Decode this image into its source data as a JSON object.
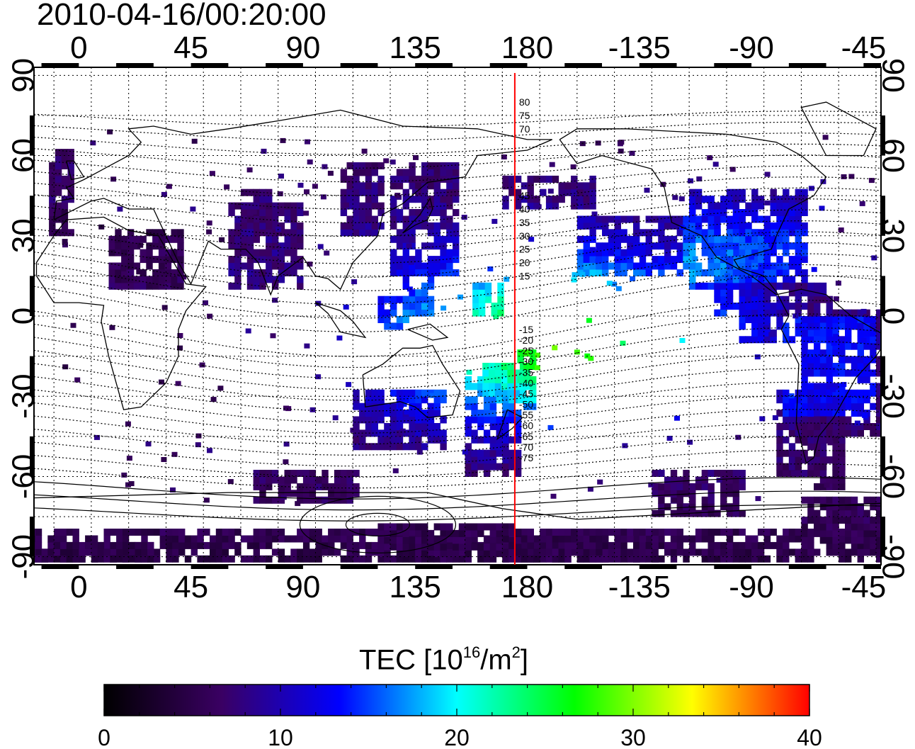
{
  "timestamp": "2010-04-16/00:20:00",
  "chart_data": {
    "type": "heatmap",
    "title": "2010-04-16/00:20:00",
    "x_ticks": [
      "0",
      "45",
      "90",
      "135",
      "180",
      "-135",
      "-90",
      "-45"
    ],
    "x_tick_lon": [
      0,
      45,
      90,
      135,
      180,
      225,
      270,
      315
    ],
    "y_ticks": [
      "90",
      "60",
      "30",
      "0",
      "-30",
      "-60",
      "-90"
    ],
    "y_tick_lat": [
      90,
      60,
      30,
      0,
      -30,
      -60,
      -90
    ],
    "xlim": [
      -18,
      322
    ],
    "ylim": [
      -93,
      93
    ],
    "grid": true,
    "colorbar": {
      "title_prefix": "TEC  [10",
      "title_exp1": "16",
      "title_mid": "/m",
      "title_exp2": "2",
      "title_suffix": "]",
      "range": [
        0,
        40
      ],
      "ticks": [
        "0",
        "10",
        "20",
        "30",
        "40"
      ],
      "tick_values": [
        0,
        10,
        20,
        30,
        40
      ],
      "colors": [
        "#000000",
        "#3a0063",
        "#0000ff",
        "#00ffff",
        "#00ff00",
        "#ffff00",
        "#ff0000"
      ]
    },
    "meridian_lon": 175,
    "meridian_color": "#ff0000",
    "meridian_labels": [
      "80",
      "75",
      "70",
      "45",
      "40",
      "35",
      "30",
      "25",
      "20",
      "15",
      "-15",
      "-20",
      "-25",
      "-30",
      "-35",
      "-40",
      "-45",
      "-50",
      "-55",
      "-60",
      "-65",
      "-70",
      "-75"
    ],
    "meridian_label_lat": [
      80,
      75,
      70,
      45,
      40,
      35,
      30,
      25,
      20,
      15,
      -5,
      -9,
      -13,
      -17,
      -21,
      -25,
      -29,
      -33,
      -37,
      -41,
      -45,
      -49,
      -53
    ]
  }
}
